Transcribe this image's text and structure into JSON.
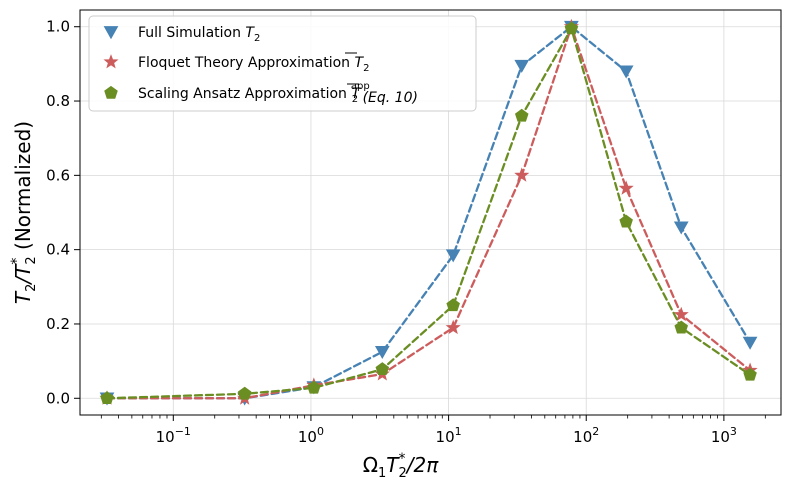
{
  "chart_data": {
    "type": "line",
    "title": "",
    "xlabel": {
      "base": "Ω",
      "sub": "1",
      "mid": "T",
      "sup": "*",
      "sub2": "2",
      "tail": "/2π"
    },
    "ylabel": {
      "base": "T",
      "sub": "2",
      "mid": "/T",
      "sup": "*",
      "sub2": "2",
      "tail": "  (Normalized)"
    },
    "xscale": "log",
    "xlim": [
      0.021,
      2600
    ],
    "ylim": [
      -0.045,
      1.045
    ],
    "xticks": [
      {
        "value": 0.1,
        "base": "10",
        "exp": "−1"
      },
      {
        "value": 1,
        "base": "10",
        "exp": "0"
      },
      {
        "value": 10,
        "base": "10",
        "exp": "1"
      },
      {
        "value": 100,
        "base": "10",
        "exp": "2"
      },
      {
        "value": 1000,
        "base": "10",
        "exp": "3"
      }
    ],
    "yticks": [
      {
        "value": 0.0,
        "label": "0.0"
      },
      {
        "value": 0.2,
        "label": "0.2"
      },
      {
        "value": 0.4,
        "label": "0.4"
      },
      {
        "value": 0.6,
        "label": "0.6"
      },
      {
        "value": 0.8,
        "label": "0.8"
      },
      {
        "value": 1.0,
        "label": "1.0"
      }
    ],
    "grid": true,
    "legend_position": "upper-left",
    "x": [
      0.033,
      0.33,
      1.05,
      3.3,
      10.8,
      34,
      78,
      195,
      490,
      1550
    ],
    "series": [
      {
        "name": "Full Simulation T2",
        "legend": {
          "text": "Full Simulation ",
          "math": "T",
          "sub": "2",
          "sup": "",
          "tail": ""
        },
        "color": "#4682b4",
        "marker": "triangle-down",
        "values": [
          0.0,
          0.0,
          0.03,
          0.125,
          0.385,
          0.895,
          1.0,
          0.88,
          0.46,
          0.15
        ]
      },
      {
        "name": "Floquet Theory Approximation T2bar",
        "legend": {
          "text": "Floquet Theory Approximation ",
          "math": "T",
          "sub": "2",
          "sup": "",
          "tail": ""
        },
        "color": "#cd5c5c",
        "marker": "star",
        "values": [
          0.0,
          0.0,
          0.035,
          0.065,
          0.19,
          0.6,
          1.0,
          0.565,
          0.225,
          0.075
        ]
      },
      {
        "name": "Scaling Ansatz Approximation T2bar app (Eq.10)",
        "legend": {
          "text": "Scaling Ansatz Approximation ",
          "math": "T",
          "sub": "2",
          "sup": "app",
          "tail": " (Eq. 10)"
        },
        "color": "#6b8e23",
        "marker": "pentagon",
        "values": [
          0.0,
          0.012,
          0.028,
          0.078,
          0.25,
          0.76,
          0.995,
          0.475,
          0.19,
          0.063
        ]
      }
    ]
  }
}
